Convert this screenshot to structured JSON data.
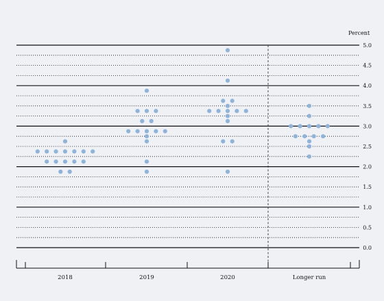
{
  "chart_data": {
    "type": "scatter",
    "ylabel": "Percent",
    "ylim": [
      0,
      5
    ],
    "yticks": [
      "0.0",
      "0.5",
      "1.0",
      "1.5",
      "2.0",
      "2.5",
      "3.0",
      "3.5",
      "4.0",
      "4.5",
      "5.0"
    ],
    "categories": [
      "2018",
      "2019",
      "2020",
      "Longer run"
    ],
    "dot_color": "#8fb4db",
    "series": [
      {
        "category": "2018",
        "points": [
          {
            "y": 2.625,
            "count": 1
          },
          {
            "y": 2.375,
            "count": 7
          },
          {
            "y": 2.125,
            "count": 5
          },
          {
            "y": 1.875,
            "count": 2
          }
        ]
      },
      {
        "category": "2019",
        "points": [
          {
            "y": 3.875,
            "count": 1
          },
          {
            "y": 3.375,
            "count": 3
          },
          {
            "y": 3.125,
            "count": 2
          },
          {
            "y": 2.875,
            "count": 5
          },
          {
            "y": 2.75,
            "count": 1
          },
          {
            "y": 2.625,
            "count": 1
          },
          {
            "y": 2.125,
            "count": 1
          },
          {
            "y": 1.875,
            "count": 1
          }
        ]
      },
      {
        "category": "2020",
        "points": [
          {
            "y": 4.875,
            "count": 1
          },
          {
            "y": 4.125,
            "count": 1
          },
          {
            "y": 3.625,
            "count": 2
          },
          {
            "y": 3.5,
            "count": 1
          },
          {
            "y": 3.375,
            "count": 5
          },
          {
            "y": 3.25,
            "count": 1
          },
          {
            "y": 3.125,
            "count": 1
          },
          {
            "y": 2.625,
            "count": 2
          },
          {
            "y": 1.875,
            "count": 1
          }
        ]
      },
      {
        "category": "Longer run",
        "points": [
          {
            "y": 3.5,
            "count": 1
          },
          {
            "y": 3.25,
            "count": 1
          },
          {
            "y": 3.0,
            "count": 5
          },
          {
            "y": 2.75,
            "count": 4
          },
          {
            "y": 2.625,
            "count": 1
          },
          {
            "y": 2.5,
            "count": 1
          },
          {
            "y": 2.25,
            "count": 1
          }
        ]
      }
    ]
  }
}
